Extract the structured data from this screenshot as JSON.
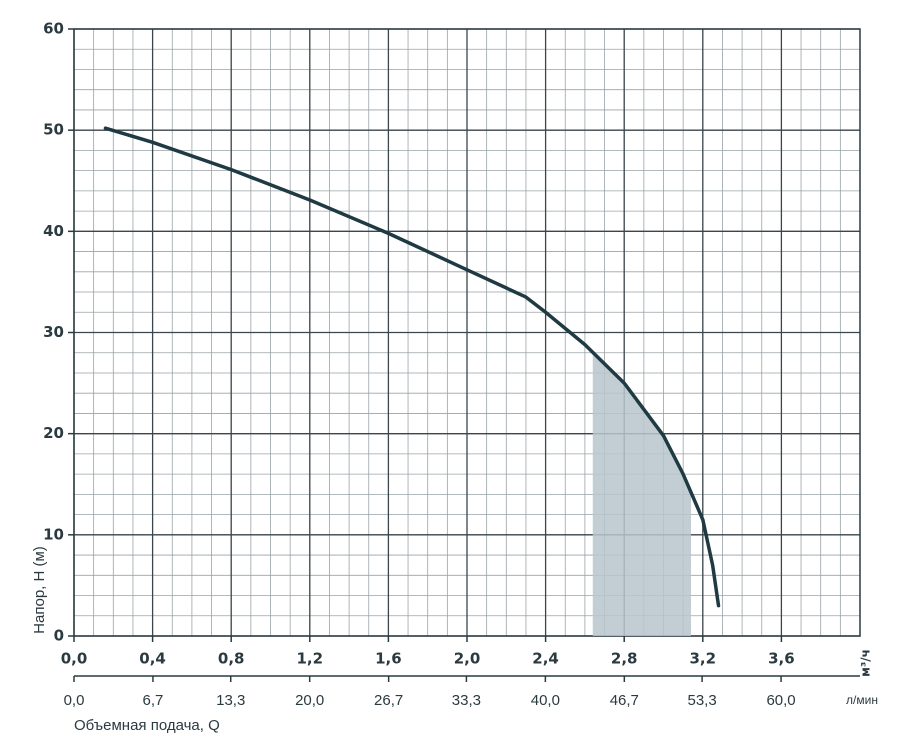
{
  "chart_data": {
    "type": "line",
    "ylabel": "Напор, H (м)",
    "xunit": "м³/ч",
    "x2unit": "л/мин",
    "x2label": "Объемная подача, Q",
    "x": [
      0.16,
      0.4,
      0.8,
      1.2,
      1.6,
      2.0,
      2.3,
      2.4,
      2.6,
      2.8,
      3.0,
      3.1,
      3.2,
      3.25,
      3.28
    ],
    "values": [
      50.2,
      48.8,
      46.1,
      43.1,
      39.8,
      36.2,
      33.5,
      32.0,
      28.8,
      25.0,
      19.8,
      16.0,
      11.5,
      7.0,
      3.0
    ],
    "color": "#1f3a42",
    "shaded_range": [
      2.64,
      3.14
    ],
    "shade_color": "#b9c5cc",
    "xlim": [
      0,
      4.0
    ],
    "ylim": [
      0,
      60
    ],
    "x2lim": [
      0,
      66.7
    ],
    "xticks": [
      {
        "value": 0,
        "label": "0,0"
      },
      {
        "value": 0.4,
        "label": "0,4"
      },
      {
        "value": 0.8,
        "label": "0,8"
      },
      {
        "value": 1.2,
        "label": "1,2"
      },
      {
        "value": 1.6,
        "label": "1,6"
      },
      {
        "value": 2.0,
        "label": "2,0"
      },
      {
        "value": 2.4,
        "label": "2,4"
      },
      {
        "value": 2.8,
        "label": "2,8"
      },
      {
        "value": 3.2,
        "label": "3,2"
      },
      {
        "value": 3.6,
        "label": "3,6"
      }
    ],
    "x2ticks": [
      {
        "value": 0,
        "label": "0,0"
      },
      {
        "value": 6.7,
        "label": "6,7"
      },
      {
        "value": 13.3,
        "label": "13,3"
      },
      {
        "value": 20.0,
        "label": "20,0"
      },
      {
        "value": 26.7,
        "label": "26,7"
      },
      {
        "value": 33.3,
        "label": "33,3"
      },
      {
        "value": 40.0,
        "label": "40,0"
      },
      {
        "value": 46.7,
        "label": "46,7"
      },
      {
        "value": 53.3,
        "label": "53,3"
      },
      {
        "value": 60.0,
        "label": "60,0"
      }
    ],
    "yticks": [
      0,
      10,
      20,
      30,
      40,
      50,
      60
    ],
    "grid": true,
    "minor_grid": {
      "x": 0.1,
      "y": 2
    }
  }
}
